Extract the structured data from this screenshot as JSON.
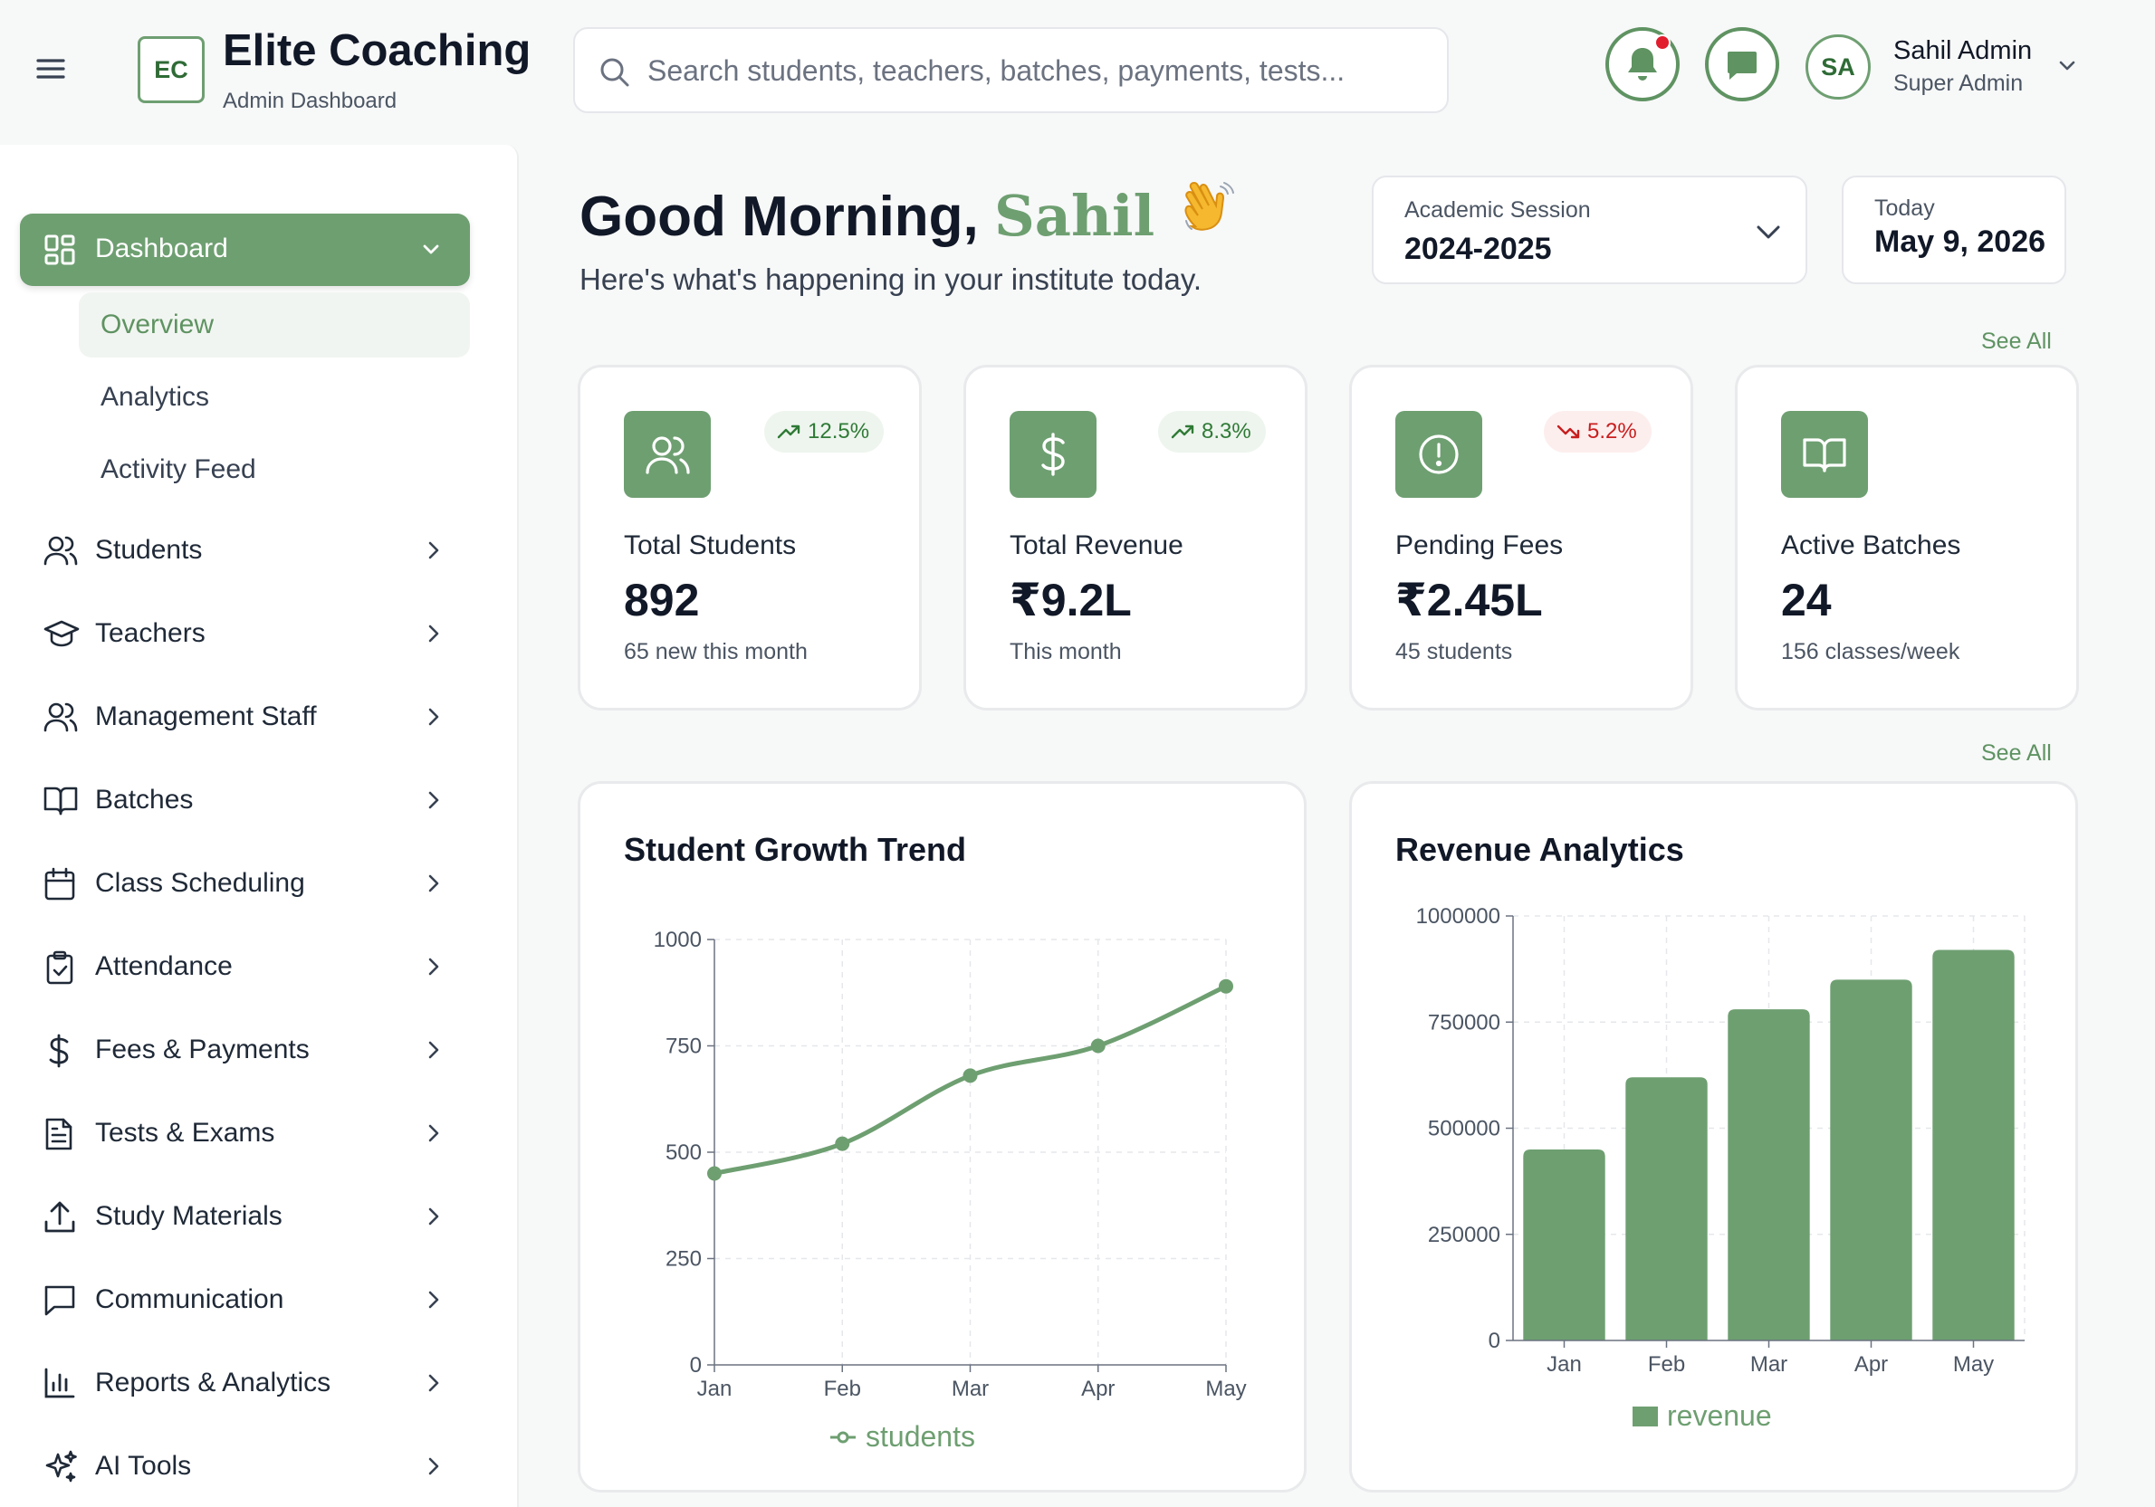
{
  "header": {
    "logo_text": "EC",
    "brand_title": "Elite Coaching",
    "brand_subtitle": "Admin Dashboard",
    "search_placeholder": "Search students, teachers, batches, payments, tests...",
    "user": {
      "initials": "SA",
      "name": "Sahil Admin",
      "role": "Super Admin"
    },
    "icons": [
      "menu-icon",
      "search-icon",
      "bell-icon",
      "message-icon",
      "chevron-down-icon"
    ],
    "notification_dot_color": "#e11d2e"
  },
  "sidebar": {
    "active": {
      "label": "Dashboard",
      "icon": "dashboard-grid-icon"
    },
    "sub_items": [
      {
        "label": "Overview",
        "selected": true
      },
      {
        "label": "Analytics",
        "selected": false
      },
      {
        "label": "Activity Feed",
        "selected": false
      }
    ],
    "items": [
      {
        "label": "Students",
        "icon": "users-icon"
      },
      {
        "label": "Teachers",
        "icon": "graduation-cap-icon"
      },
      {
        "label": "Management Staff",
        "icon": "user-group-icon"
      },
      {
        "label": "Batches",
        "icon": "book-open-icon"
      },
      {
        "label": "Class Scheduling",
        "icon": "calendar-icon"
      },
      {
        "label": "Attendance",
        "icon": "clipboard-check-icon"
      },
      {
        "label": "Fees & Payments",
        "icon": "dollar-icon"
      },
      {
        "label": "Tests & Exams",
        "icon": "document-icon"
      },
      {
        "label": "Study Materials",
        "icon": "upload-icon"
      },
      {
        "label": "Communication",
        "icon": "chat-icon"
      },
      {
        "label": "Reports & Analytics",
        "icon": "bar-chart-icon"
      },
      {
        "label": "AI Tools",
        "icon": "sparkles-icon"
      }
    ]
  },
  "greeting": {
    "prefix": "Good Morning,",
    "name": "Sahil",
    "subtitle": "Here's what's happening in your institute today."
  },
  "session": {
    "label": "Academic Session",
    "value": "2024-2025"
  },
  "today": {
    "label": "Today",
    "value": "May 9, 2026"
  },
  "see_all_label": "See All",
  "stats": [
    {
      "title": "Total Students",
      "value": "892",
      "note": "65 new this month",
      "trend": "12.5%",
      "direction": "up",
      "icon": "users-icon"
    },
    {
      "title": "Total Revenue",
      "value": "₹9.2L",
      "note": "This month",
      "trend": "8.3%",
      "direction": "up",
      "icon": "dollar-icon"
    },
    {
      "title": "Pending Fees",
      "value": "₹2.45L",
      "note": "45 students",
      "trend": "5.2%",
      "direction": "down",
      "icon": "alert-circle-icon"
    },
    {
      "title": "Active Batches",
      "value": "24",
      "note": "156 classes/week",
      "trend": "",
      "direction": "none",
      "icon": "book-open-icon"
    }
  ],
  "colors": {
    "accent": "#6e9f71",
    "accent_dark": "#2f6b36",
    "up": "#2f7a36",
    "down": "#c81e1e"
  },
  "chart_data": [
    {
      "type": "line",
      "title": "Student Growth Trend",
      "categories": [
        "Jan",
        "Feb",
        "Mar",
        "Apr",
        "May"
      ],
      "series": [
        {
          "name": "students",
          "values": [
            450,
            520,
            680,
            750,
            890
          ]
        }
      ],
      "ylim": [
        0,
        1000
      ],
      "yticks": [
        0,
        250,
        500,
        750,
        1000
      ],
      "grid": true,
      "legend": "bottom"
    },
    {
      "type": "bar",
      "title": "Revenue Analytics",
      "categories": [
        "Jan",
        "Feb",
        "Mar",
        "Apr",
        "May"
      ],
      "series": [
        {
          "name": "revenue",
          "values": [
            450000,
            620000,
            780000,
            850000,
            920000
          ]
        }
      ],
      "ylim": [
        0,
        1000000
      ],
      "yticks": [
        0,
        250000,
        500000,
        750000,
        1000000
      ],
      "grid": true,
      "legend": "bottom"
    }
  ]
}
